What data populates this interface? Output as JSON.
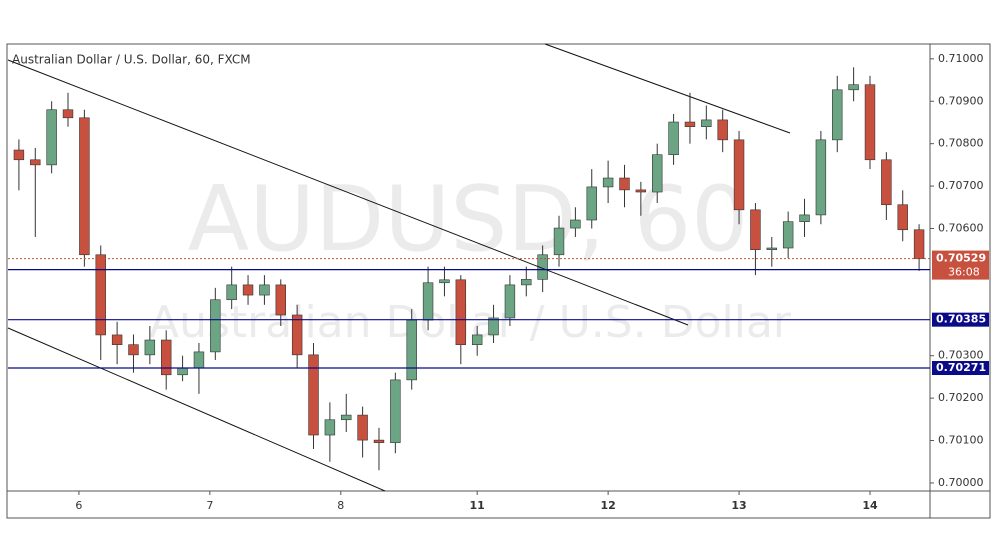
{
  "chart_data": {
    "type": "candlestick",
    "title": "Australian Dollar / U.S. Dollar, 60, FXCM",
    "watermark": "AUDUSD, 60",
    "watermark_subtitle": "Australian Dollar / U.S. Dollar",
    "x": [
      2,
      5,
      8,
      11,
      14,
      17,
      20,
      23,
      26,
      29,
      32,
      35,
      38,
      41,
      44,
      47,
      50,
      53,
      56,
      59,
      62,
      65,
      68,
      71,
      74,
      77,
      80,
      83,
      86,
      89,
      92,
      95,
      98,
      101,
      104,
      107,
      110,
      113,
      116,
      119,
      122,
      125,
      128,
      131,
      134,
      137,
      140,
      143,
      146,
      149,
      152,
      155,
      158,
      161,
      164,
      167
    ],
    "open": [
      0.70785,
      0.70762,
      0.7075,
      0.7088,
      0.70861,
      0.70538,
      0.70349,
      0.70326,
      0.70302,
      0.70337,
      0.70255,
      0.70271,
      0.70309,
      0.70432,
      0.70467,
      0.70443,
      0.70467,
      0.70396,
      0.70302,
      0.70113,
      0.70149,
      0.7016,
      0.70101,
      0.70095,
      0.70243,
      0.70384,
      0.70472,
      0.70479,
      0.70326,
      0.70349,
      0.70389,
      0.70467,
      0.7048,
      0.70538,
      0.70601,
      0.7062,
      0.70698,
      0.70719,
      0.70691,
      0.70686,
      0.70774,
      0.70851,
      0.7084,
      0.70856,
      0.70809,
      0.70644,
      0.7055,
      0.70554,
      0.70616,
      0.70632,
      0.70809,
      0.70927,
      0.70939,
      0.70762,
      0.70656,
      0.70597
    ],
    "high": [
      0.7081,
      0.7079,
      0.709,
      0.7092,
      0.7088,
      0.7056,
      0.7038,
      0.7035,
      0.7037,
      0.7036,
      0.703,
      0.7033,
      0.7046,
      0.7051,
      0.7049,
      0.7049,
      0.7048,
      0.7042,
      0.7033,
      0.7019,
      0.7021,
      0.7018,
      0.7013,
      0.7026,
      0.7041,
      0.7051,
      0.7051,
      0.7049,
      0.7037,
      0.7042,
      0.7049,
      0.7051,
      0.7056,
      0.7063,
      0.7065,
      0.7074,
      0.7076,
      0.7075,
      0.7071,
      0.708,
      0.7087,
      0.7092,
      0.7089,
      0.7088,
      0.7083,
      0.7066,
      0.7058,
      0.7064,
      0.7067,
      0.7083,
      0.7096,
      0.7098,
      0.7096,
      0.7078,
      0.7069,
      0.7061
    ],
    "low": [
      0.7069,
      0.7058,
      0.7073,
      0.7084,
      0.7051,
      0.7029,
      0.7028,
      0.7026,
      0.7028,
      0.7022,
      0.7024,
      0.7021,
      0.7029,
      0.7041,
      0.7042,
      0.7042,
      0.7037,
      0.7027,
      0.7008,
      0.7005,
      0.7012,
      0.7006,
      0.7003,
      0.7007,
      0.7022,
      0.7036,
      0.7044,
      0.7028,
      0.703,
      0.7033,
      0.7037,
      0.7044,
      0.7045,
      0.7051,
      0.7058,
      0.706,
      0.7066,
      0.7065,
      0.7063,
      0.7066,
      0.7075,
      0.708,
      0.7081,
      0.7078,
      0.7061,
      0.7049,
      0.7051,
      0.7053,
      0.7058,
      0.7061,
      0.7078,
      0.709,
      0.7074,
      0.7062,
      0.7057,
      0.705
    ],
    "close": [
      0.70762,
      0.7075,
      0.7088,
      0.70861,
      0.70538,
      0.70349,
      0.70326,
      0.70302,
      0.70337,
      0.70255,
      0.70271,
      0.70309,
      0.70432,
      0.70467,
      0.70443,
      0.70467,
      0.70396,
      0.70302,
      0.70113,
      0.70149,
      0.7016,
      0.70101,
      0.70095,
      0.70243,
      0.70384,
      0.70472,
      0.70479,
      0.70326,
      0.70349,
      0.70389,
      0.70467,
      0.7048,
      0.70538,
      0.70601,
      0.7062,
      0.70698,
      0.70719,
      0.70691,
      0.70686,
      0.70774,
      0.70851,
      0.7084,
      0.70856,
      0.70809,
      0.70644,
      0.7055,
      0.70554,
      0.70616,
      0.70632,
      0.70809,
      0.70927,
      0.70939,
      0.70762,
      0.70656,
      0.70597,
      0.70529
    ],
    "xlim": [
      0,
      169
    ],
    "xticks": [
      {
        "value": 13,
        "label": "6"
      },
      {
        "value": 37,
        "label": "7"
      },
      {
        "value": 61,
        "label": "8"
      },
      {
        "value": 86,
        "label": "11"
      },
      {
        "value": 110,
        "label": "12"
      },
      {
        "value": 134,
        "label": "13"
      },
      {
        "value": 158,
        "label": "14"
      }
    ],
    "ylim": [
      0.69981,
      0.71035
    ],
    "yticks": [
      {
        "value": 0.71,
        "label": "0.71000"
      },
      {
        "value": 0.709,
        "label": "0.70900"
      },
      {
        "value": 0.708,
        "label": "0.70800"
      },
      {
        "value": 0.707,
        "label": "0.70700"
      },
      {
        "value": 0.706,
        "label": "0.70600"
      },
      {
        "value": 0.703,
        "label": "0.70300"
      },
      {
        "value": 0.702,
        "label": "0.70200"
      },
      {
        "value": 0.701,
        "label": "0.70100"
      },
      {
        "value": 0.7,
        "label": "0.70000"
      }
    ],
    "up_color": "#6ba583",
    "down_color": "#c8503e",
    "wick_color": "#333333",
    "last_price": 0.70529,
    "countdown": "36:08",
    "levels": [
      0.70503,
      0.70385,
      0.70271
    ],
    "level_color": "#0b0b8a",
    "grid": false
  }
}
